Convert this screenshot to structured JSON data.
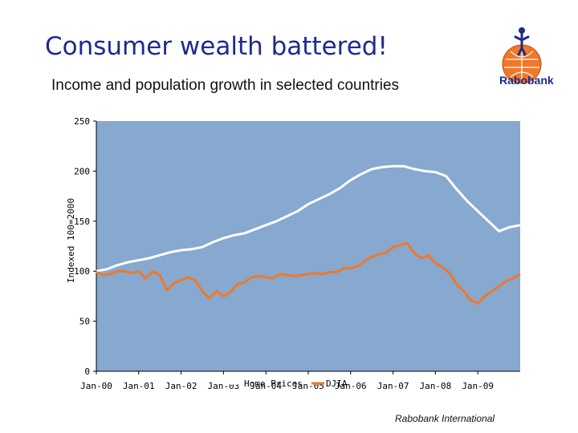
{
  "slide": {
    "title": "Consumer wealth battered!",
    "subtitle": "Income and population growth in selected countries",
    "logo_text": "Rabobank",
    "footer": "Rabobank International"
  },
  "colors": {
    "plot_bg": "#87a8cf",
    "home_prices": "#ffffff",
    "djia": "#f07828",
    "title": "#1f2a8c"
  },
  "chart_data": {
    "type": "line",
    "title": "",
    "xlabel": "",
    "ylabel": "Indexed 100=2000",
    "ylim": [
      0,
      250
    ],
    "yticks": [
      0,
      50,
      100,
      150,
      200,
      250
    ],
    "xlim": [
      "2000-01",
      "2010-01"
    ],
    "xtick_labels": [
      "Jan-00",
      "Jan-01",
      "Jan-02",
      "Jan-03",
      "Jan-04",
      "Jan-05",
      "Jan-06",
      "Jan-07",
      "Jan-08",
      "Jan-09"
    ],
    "grid": false,
    "legend": "bottom",
    "series": [
      {
        "name": "Home Prices",
        "color": "#ffffff",
        "x": [
          "2000-01",
          "2000-04",
          "2000-07",
          "2000-10",
          "2001-01",
          "2001-04",
          "2001-07",
          "2001-10",
          "2002-01",
          "2002-04",
          "2002-07",
          "2002-10",
          "2003-01",
          "2003-04",
          "2003-07",
          "2003-10",
          "2004-01",
          "2004-04",
          "2004-07",
          "2004-10",
          "2005-01",
          "2005-04",
          "2005-07",
          "2005-10",
          "2006-01",
          "2006-04",
          "2006-07",
          "2006-10",
          "2007-01",
          "2007-04",
          "2007-07",
          "2007-10",
          "2008-01",
          "2008-04",
          "2008-07",
          "2008-10",
          "2009-01",
          "2009-04",
          "2009-07",
          "2009-10",
          "2010-01"
        ],
        "values": [
          100,
          102,
          106,
          109,
          111,
          113,
          116,
          119,
          121,
          122,
          124,
          129,
          133,
          136,
          138,
          142,
          146,
          150,
          155,
          160,
          167,
          172,
          177,
          183,
          191,
          197,
          202,
          204,
          205,
          205,
          202,
          200,
          199,
          195,
          182,
          170,
          160,
          150,
          140,
          144,
          146
        ]
      },
      {
        "name": "DJIA",
        "color": "#f07828",
        "x": [
          "2000-01",
          "2000-03",
          "2000-05",
          "2000-07",
          "2000-09",
          "2000-11",
          "2001-01",
          "2001-03",
          "2001-05",
          "2001-07",
          "2001-09",
          "2001-11",
          "2002-01",
          "2002-03",
          "2002-05",
          "2002-07",
          "2002-09",
          "2002-11",
          "2003-01",
          "2003-03",
          "2003-05",
          "2003-07",
          "2003-09",
          "2003-11",
          "2004-01",
          "2004-03",
          "2004-05",
          "2004-07",
          "2004-09",
          "2004-11",
          "2005-01",
          "2005-03",
          "2005-05",
          "2005-07",
          "2005-09",
          "2005-11",
          "2006-01",
          "2006-03",
          "2006-05",
          "2006-07",
          "2006-09",
          "2006-11",
          "2007-01",
          "2007-03",
          "2007-05",
          "2007-07",
          "2007-09",
          "2007-11",
          "2008-01",
          "2008-03",
          "2008-05",
          "2008-07",
          "2008-09",
          "2008-11",
          "2009-01",
          "2009-03",
          "2009-05",
          "2009-07",
          "2009-09",
          "2009-11",
          "2010-01"
        ],
        "values": [
          99,
          96,
          97,
          100,
          100,
          98,
          100,
          93,
          100,
          96,
          81,
          88,
          91,
          94,
          91,
          80,
          73,
          80,
          75,
          79,
          87,
          89,
          94,
          95,
          94,
          93,
          97,
          96,
          95,
          96,
          97,
          98,
          97,
          99,
          99,
          103,
          103,
          105,
          110,
          114,
          117,
          118,
          124,
          126,
          128,
          118,
          113,
          116,
          108,
          104,
          98,
          87,
          80,
          71,
          68,
          75,
          80,
          85,
          90,
          93,
          97
        ]
      }
    ]
  }
}
